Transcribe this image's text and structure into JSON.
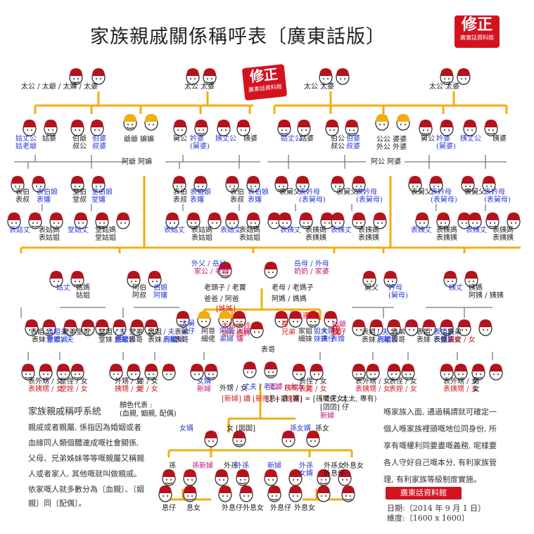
{
  "title": "家族親戚關係稱呼表〔廣東話版〕",
  "seal_top": {
    "big": "修正",
    "small": "廣東話資料館"
  },
  "seal_mid": {
    "big": "修正",
    "small": "廣東話資料館"
  },
  "colors": {
    "wood": "#f2ad10",
    "hat": "#b3131d",
    "hair": "#222222",
    "blue": "#2a3bd1",
    "magenta": "#c0157a",
    "red": "#d7191c"
  },
  "labels": [
    {
      "text": "太公 / 太爺 / 太嫲 / 太婆",
      "c": "blk"
    },
    {
      "text": "太公 太婆",
      "c": "blk"
    },
    {
      "text": "太公 太婆",
      "c": "blk"
    },
    {
      "text": "太公 太婆",
      "c": "blk"
    },
    {
      "text": "姑丈公",
      "c": "blu"
    },
    {
      "text": "姑老爺",
      "c": "blu"
    },
    {
      "text": "姑婆",
      "c": "blk"
    },
    {
      "text": "伯爺",
      "c": "blk"
    },
    {
      "text": "叔公",
      "c": "blk"
    },
    {
      "text": "伯婆",
      "c": "blu"
    },
    {
      "text": "叔婆",
      "c": "blu"
    },
    {
      "text": "爺爺 嫲嫲",
      "c": "blk"
    },
    {
      "text": "阿爺 阿嫲",
      "c": "blk"
    },
    {
      "text": "舅公",
      "c": "blk"
    },
    {
      "text": "妗婆",
      "c": "blu"
    },
    {
      "text": "(舅婆)",
      "c": "blu"
    },
    {
      "text": "姨丈公",
      "c": "blu"
    },
    {
      "text": "姨婆",
      "c": "blk"
    },
    {
      "text": "姑丈公",
      "c": "blu"
    },
    {
      "text": "姑婆",
      "c": "blk"
    },
    {
      "text": "伯公",
      "c": "blk"
    },
    {
      "text": "叔公",
      "c": "blk"
    },
    {
      "text": "伯婆",
      "c": "blu"
    },
    {
      "text": "叔婆",
      "c": "blu"
    },
    {
      "text": "公公 婆婆",
      "c": "blk"
    },
    {
      "text": "外公 外婆",
      "c": "blk"
    },
    {
      "text": "阿公 阿婆",
      "c": "blk"
    },
    {
      "text": "舅公",
      "c": "blk"
    },
    {
      "text": "妗婆",
      "c": "blu"
    },
    {
      "text": "(舅婆)",
      "c": "blu"
    },
    {
      "text": "姨丈公",
      "c": "blu"
    },
    {
      "text": "姨婆",
      "c": "blk"
    },
    {
      "text": "表伯",
      "c": "blk"
    },
    {
      "text": "表叔",
      "c": "blk"
    },
    {
      "text": "表伯娘",
      "c": "blu"
    },
    {
      "text": "表嬸",
      "c": "blu"
    },
    {
      "text": "堂伯",
      "c": "blk"
    },
    {
      "text": "堂叔",
      "c": "blk"
    },
    {
      "text": "堂伯娘",
      "c": "blu"
    },
    {
      "text": "堂嬸",
      "c": "blu"
    },
    {
      "text": "表伯",
      "c": "blk"
    },
    {
      "text": "表叔",
      "c": "blk"
    },
    {
      "text": "表伯娘",
      "c": "blu"
    },
    {
      "text": "表嬸",
      "c": "blu"
    },
    {
      "text": "表伯",
      "c": "blk"
    },
    {
      "text": "表叔",
      "c": "blk"
    },
    {
      "text": "表伯娘",
      "c": "blu"
    },
    {
      "text": "表嬸",
      "c": "blu"
    },
    {
      "text": "表舅父",
      "c": "blk"
    },
    {
      "text": "表妗母",
      "c": "blu"
    },
    {
      "text": "(表舅母)",
      "c": "blu"
    },
    {
      "text": "表舅父",
      "c": "blk"
    },
    {
      "text": "表妗母",
      "c": "blu"
    },
    {
      "text": "(表舅母)",
      "c": "blu"
    },
    {
      "text": "表舅父",
      "c": "blk"
    },
    {
      "text": "表妗母",
      "c": "blu"
    },
    {
      "text": "(表舅母)",
      "c": "blu"
    },
    {
      "text": "表舅父",
      "c": "blk"
    },
    {
      "text": "表妗母",
      "c": "blu"
    },
    {
      "text": "(表舅母)",
      "c": "blu"
    },
    {
      "text": "表姑丈",
      "c": "blu"
    },
    {
      "text": "表姑媽",
      "c": "blk"
    },
    {
      "text": "表姑姐",
      "c": "blk"
    },
    {
      "text": "堂姑丈",
      "c": "blu"
    },
    {
      "text": "堂姑媽",
      "c": "blk"
    },
    {
      "text": "堂姑姐",
      "c": "blk"
    },
    {
      "text": "表姑丈",
      "c": "blu"
    },
    {
      "text": "表姑媽",
      "c": "blk"
    },
    {
      "text": "表姑姐",
      "c": "blk"
    },
    {
      "text": "表姑丈",
      "c": "blu"
    },
    {
      "text": "表姑媽",
      "c": "blk"
    },
    {
      "text": "表姑姐",
      "c": "blk"
    },
    {
      "text": "表姨丈",
      "c": "blu"
    },
    {
      "text": "表姨媽",
      "c": "blk"
    },
    {
      "text": "表姨姨",
      "c": "blk"
    },
    {
      "text": "表姨丈",
      "c": "blu"
    },
    {
      "text": "表姨媽",
      "c": "blk"
    },
    {
      "text": "表姨姨",
      "c": "blk"
    },
    {
      "text": "表姨丈",
      "c": "blu"
    },
    {
      "text": "表姨媽",
      "c": "blk"
    },
    {
      "text": "表姨姨",
      "c": "blk"
    },
    {
      "text": "表姨丈",
      "c": "blu"
    },
    {
      "text": "表姨媽",
      "c": "blk"
    },
    {
      "text": "表姨姨",
      "c": "blk"
    },
    {
      "text": "外父 / 岳父",
      "c": "blu"
    },
    {
      "text": "家公 / 老爺",
      "c": "mag"
    },
    {
      "text": "岳母 / 外母",
      "c": "blu"
    },
    {
      "text": "奶奶 / 家婆",
      "c": "mag"
    },
    {
      "text": "老頭子 / 老竇",
      "c": "blk"
    },
    {
      "text": "老母 / 老媽子",
      "c": "blk"
    },
    {
      "text": "爸爸 / 阿爸",
      "c": "blk"
    },
    {
      "text": "阿媽 / 媽媽",
      "c": "blk"
    },
    {
      "text": "姑丈",
      "c": "blu"
    },
    {
      "text": "姑媽",
      "c": "blk"
    },
    {
      "text": "姑姐",
      "c": "blk"
    },
    {
      "text": "阿伯",
      "c": "blk"
    },
    {
      "text": "阿叔",
      "c": "blk"
    },
    {
      "text": "伯娘",
      "c": "blu"
    },
    {
      "text": "阿嬸",
      "c": "blu"
    },
    {
      "text": "舅父",
      "c": "blk"
    },
    {
      "text": "妗母",
      "c": "blu"
    },
    {
      "text": "(舅母)",
      "c": "blu"
    },
    {
      "text": "姨丈",
      "c": "blu"
    },
    {
      "text": "姨媽",
      "c": "blk"
    },
    {
      "text": "阿姨 / 姨姨",
      "c": "blk"
    },
    {
      "text": "[姊姊]",
      "c": "red"
    },
    {
      "text": "[連襟]",
      "c": "red"
    },
    {
      "text": "大舅",
      "c": "blu"
    },
    {
      "text": "舅仔",
      "c": "blu"
    },
    {
      "text": "大姑",
      "c": "red"
    },
    {
      "text": "姑仔",
      "c": "red"
    },
    {
      "text": "大妗",
      "c": "red"
    },
    {
      "text": "細妗",
      "c": "red"
    },
    {
      "text": "阿哥",
      "c": "blk"
    },
    {
      "text": "細佬",
      "c": "blk"
    },
    {
      "text": "阿嫂",
      "c": "blu"
    },
    {
      "text": "弟婦",
      "c": "blu"
    },
    {
      "text": "大嫂",
      "c": "mag"
    },
    {
      "text": "嬸",
      "c": "mag"
    },
    {
      "text": "襟",
      "c": "red"
    },
    {
      "text": "兄弟",
      "c": "red"
    },
    {
      "text": "家姐",
      "c": "blk"
    },
    {
      "text": "細妹",
      "c": "blk"
    },
    {
      "text": "姐夫",
      "c": "blu"
    },
    {
      "text": "妹夫",
      "c": "blu"
    },
    {
      "text": "大姨",
      "c": "blu"
    },
    {
      "text": "姨仔",
      "c": "blu"
    },
    {
      "text": "姑爺",
      "c": "mag"
    },
    {
      "text": "姑仔",
      "c": "mag"
    },
    {
      "text": "我",
      "c": "red"
    },
    {
      "text": "表嫂",
      "c": "blu"
    },
    {
      "text": "表哥",
      "c": "blk"
    },
    {
      "text": "表姐",
      "c": "blk"
    },
    {
      "text": "表姐夫",
      "c": "blu"
    },
    {
      "text": "表弟婦",
      "c": "blu"
    },
    {
      "text": "表弟",
      "c": "blk"
    },
    {
      "text": "表妹",
      "c": "blk"
    },
    {
      "text": "/ 夫",
      "c": "blu"
    },
    {
      "text": "堂嫂",
      "c": "blu"
    },
    {
      "text": "堂哥",
      "c": "blk"
    },
    {
      "text": "堂姐",
      "c": "blk"
    },
    {
      "text": "/ 夫",
      "c": "blu"
    },
    {
      "text": "堂弟婦",
      "c": "blu"
    },
    {
      "text": "堂弟",
      "c": "blk"
    },
    {
      "text": "堂妹",
      "c": "blk"
    },
    {
      "text": "/ 夫",
      "c": "blu"
    },
    {
      "text": "表嫂",
      "c": "blu"
    },
    {
      "text": "表哥",
      "c": "blk"
    },
    {
      "text": "表姐",
      "c": "blk"
    },
    {
      "text": "/ 夫",
      "c": "blu"
    },
    {
      "text": "表弟婦",
      "c": "blu"
    },
    {
      "text": "表弟",
      "c": "blk"
    },
    {
      "text": "表妹",
      "c": "blk"
    },
    {
      "text": "/ 夫",
      "c": "blu"
    },
    {
      "text": "表嫂",
      "c": "blu"
    },
    {
      "text": "表哥",
      "c": "blk"
    },
    {
      "text": "表姐",
      "c": "blk"
    },
    {
      "text": "/ 夫",
      "c": "blu"
    },
    {
      "text": "表弟婦",
      "c": "blu"
    },
    {
      "text": "表弟",
      "c": "blk"
    },
    {
      "text": "表妹",
      "c": "blk"
    },
    {
      "text": "/ 夫",
      "c": "blu"
    },
    {
      "text": "表嫂",
      "c": "blu"
    },
    {
      "text": "表哥",
      "c": "blk"
    },
    {
      "text": "表姐",
      "c": "blk"
    },
    {
      "text": "表姐夫",
      "c": "blu"
    },
    {
      "text": "表弟婦",
      "c": "blu"
    },
    {
      "text": "表弟",
      "c": "blk"
    },
    {
      "text": "表妹",
      "c": "blk"
    },
    {
      "text": "表妹夫",
      "c": "blu"
    },
    {
      "text": "表侄 / 女",
      "c": "blk"
    },
    {
      "text": "表姪 / 女",
      "c": "red"
    },
    {
      "text": "表外甥 / 女",
      "c": "blk"
    },
    {
      "text": "表姨甥 / 女",
      "c": "red"
    },
    {
      "text": "堂侄 / 女",
      "c": "blk"
    },
    {
      "text": "堂姪 / 女",
      "c": "red"
    },
    {
      "text": "外甥 / 女",
      "c": "blk"
    },
    {
      "text": "姨甥 / 女",
      "c": "red"
    },
    {
      "text": "侄 / 女",
      "c": "blk"
    },
    {
      "text": "姪 / 女",
      "c": "red"
    },
    {
      "text": "女婿",
      "c": "blu"
    },
    {
      "text": "新婦",
      "c": "mag"
    },
    {
      "text": "外甥 / 女",
      "c": "blk"
    },
    {
      "text": "姨甥 / 女",
      "c": "red"
    },
    {
      "text": "表侄 / 女",
      "c": "blk"
    },
    {
      "text": "表姪 / 女",
      "c": "red"
    },
    {
      "text": "表外甥 / 女",
      "c": "blk"
    },
    {
      "text": "表姨甥 / 女",
      "c": "red"
    },
    {
      "text": "表侄 / 女",
      "c": "blk"
    },
    {
      "text": "表姪 / 女",
      "c": "red"
    },
    {
      "text": "表外甥 / 女",
      "c": "blk"
    },
    {
      "text": "表姨甥 / 女",
      "c": "red"
    },
    {
      "text": "男",
      "c": "blk"
    },
    {
      "text": "女",
      "c": "blk"
    },
    {
      "text": "丈夫 / 老公",
      "c": "blu"
    },
    {
      "text": "老婆 / 太太",
      "c": "mag"
    },
    {
      "text": "[新婦] 讀 [新抱] = [媳婦]",
      "c": "red"
    },
    {
      "text": "[息] 讀 [塞] = [孫嘅仔女]",
      "c": "blk"
    },
    {
      "text": "顏色代表 :",
      "c": "blk"
    },
    {
      "text": "(血親, 姻親, 配偶)",
      "c": "blk"
    },
    {
      "text": "(丈夫, 太太, 專有)",
      "c": "blk"
    },
    {
      "text": "[囝囝] 仔",
      "c": "blk"
    },
    {
      "text": "新婦",
      "c": "mag"
    },
    {
      "text": "女婿",
      "c": "blu"
    },
    {
      "text": "女 [囡囡]",
      "c": "blk"
    },
    {
      "text": "孫女婿",
      "c": "blu"
    },
    {
      "text": "孫女",
      "c": "blk"
    },
    {
      "text": "孫",
      "c": "blk"
    },
    {
      "text": "孫新婦",
      "c": "mag"
    },
    {
      "text": "外孫",
      "c": "blk"
    },
    {
      "text": "外孫",
      "c": "blu"
    },
    {
      "text": "新婦",
      "c": "blu"
    },
    {
      "text": "外孫",
      "c": "blu"
    },
    {
      "text": "女婿",
      "c": "blu"
    },
    {
      "text": "外孫女",
      "c": "blk"
    },
    {
      "text": "外息仔",
      "c": "blk"
    },
    {
      "text": "外息女",
      "c": "blk"
    },
    {
      "text": "息仔",
      "c": "blk"
    },
    {
      "text": "息女",
      "c": "blk"
    },
    {
      "text": "外息仔",
      "c": "blk"
    },
    {
      "text": "外息女",
      "c": "blk"
    },
    {
      "text": "外息仔",
      "c": "blk"
    },
    {
      "text": "外息女",
      "c": "blk"
    }
  ],
  "system": {
    "heading": "家族親戚稱呼系統",
    "lines": [
      "親戚或者親屬, 係指因為婚姻或者",
      "血緣同人類個體連成嘅社會關係,",
      "父母、兄弟姊妹等等嘅親屬又稱親",
      "人或者家人, 其他嘅就叫做親戚。",
      "依家嘅人就多數分為〔血親〕、〔姻",
      "親〕同〔配偶〕。"
    ]
  },
  "note": {
    "lines": [
      "喺家族入面, 通過稱謂就可確定一",
      "個人喺家族裡頭嘅地位同身份, 所",
      "享有嘅權利同要盡嘅義務, 呢樣要",
      "各人守好自己嘅本分, 有利家族管",
      "理, 有利家族等級制度實施。"
    ]
  },
  "seal_bottom": "廣東話資料館",
  "date_line": "日期:〔2014 年 9 月 1 日〕",
  "dim_line": "維度:〔1600 x 1600〕"
}
